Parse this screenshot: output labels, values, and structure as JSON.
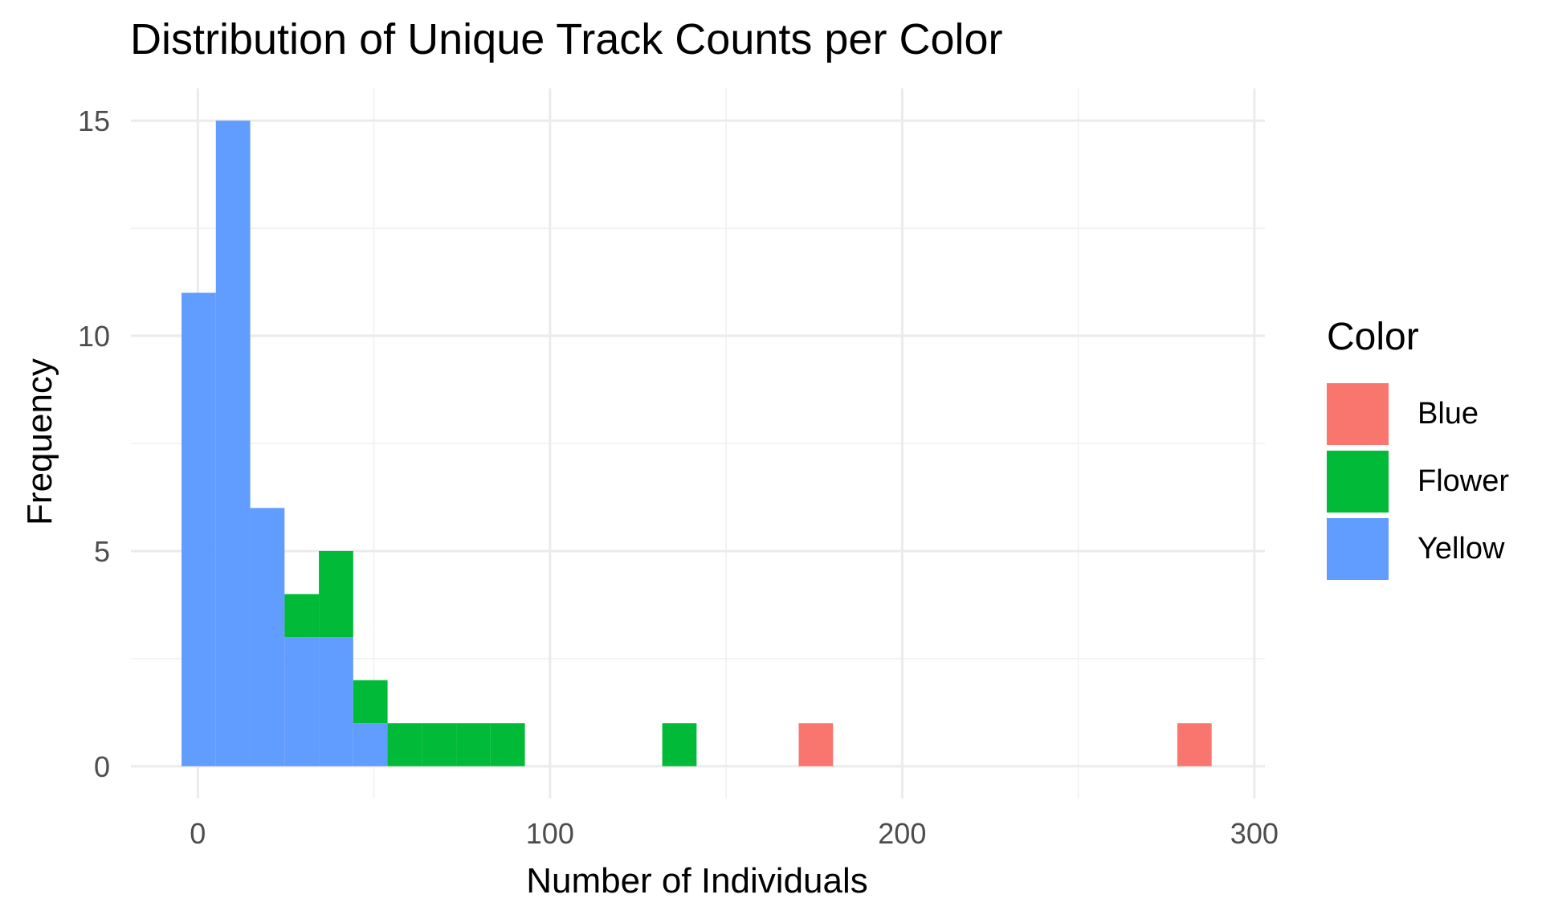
{
  "chart_data": {
    "type": "bar",
    "title": "Distribution of Unique Track Counts per Color",
    "xlabel": "Number of Individuals",
    "ylabel": "Frequency",
    "xlim": [
      -19,
      303
    ],
    "ylim": [
      -0.75,
      15.75
    ],
    "x_ticks": [
      0,
      100,
      200,
      300
    ],
    "y_ticks": [
      0,
      5,
      10,
      15
    ],
    "grid": true,
    "stacked": true,
    "bin_width": 9.75,
    "legend_title": "Color",
    "legend_position": "right",
    "series": [
      {
        "name": "Blue",
        "color": "#F8766D",
        "bins": [
          {
            "x": 175.5,
            "value": 1
          },
          {
            "x": 283,
            "value": 1
          }
        ]
      },
      {
        "name": "Flower",
        "color": "#00BA38",
        "bins": [
          {
            "x": 29.5,
            "value": 1
          },
          {
            "x": 39.25,
            "value": 2
          },
          {
            "x": 49,
            "value": 1
          },
          {
            "x": 58.75,
            "value": 1
          },
          {
            "x": 68.5,
            "value": 1
          },
          {
            "x": 78.25,
            "value": 1
          },
          {
            "x": 88,
            "value": 1
          },
          {
            "x": 136.75,
            "value": 1
          }
        ]
      },
      {
        "name": "Yellow",
        "color": "#619CFF",
        "bins": [
          {
            "x": 0.25,
            "value": 11
          },
          {
            "x": 10,
            "value": 15
          },
          {
            "x": 19.75,
            "value": 6
          },
          {
            "x": 29.5,
            "value": 3
          },
          {
            "x": 39.25,
            "value": 3
          },
          {
            "x": 49,
            "value": 1
          }
        ]
      }
    ]
  }
}
